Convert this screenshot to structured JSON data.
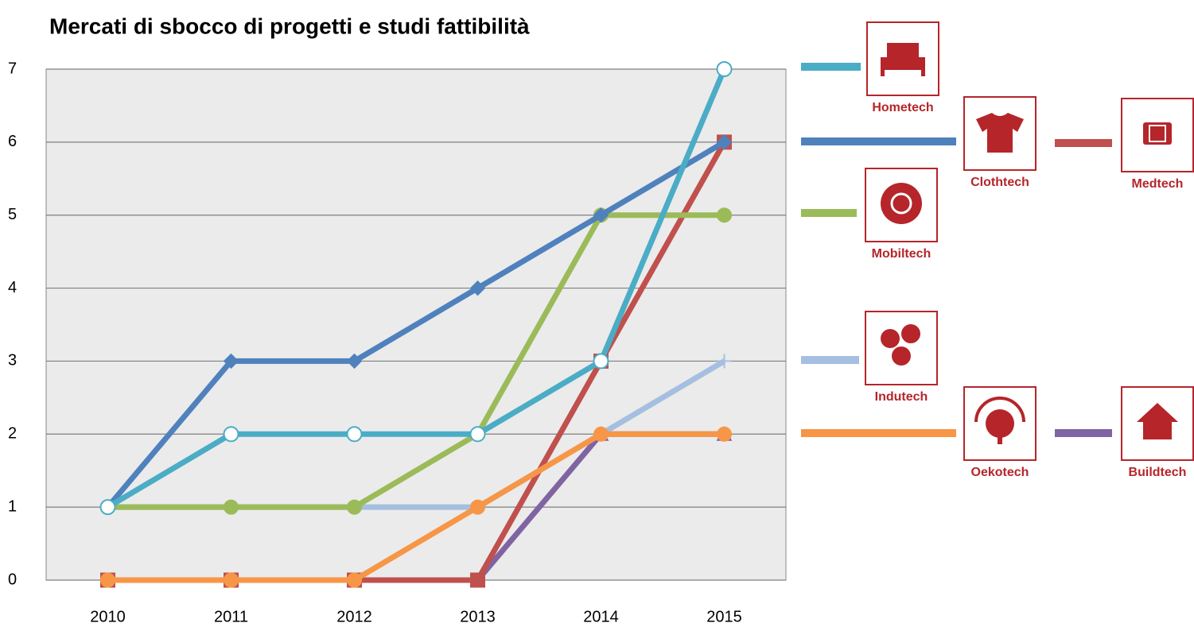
{
  "chart_data": {
    "type": "line",
    "title": "Mercati di sbocco di progetti e studi fattibilità",
    "categories": [
      "2010",
      "2011",
      "2012",
      "2013",
      "2014",
      "2015"
    ],
    "ylim": [
      0,
      7
    ],
    "yticks": [
      0,
      1,
      2,
      3,
      4,
      5,
      6,
      7
    ],
    "grid": true,
    "series": [
      {
        "name": "Buildtech",
        "color": "#8064a2",
        "marker": "triangle",
        "values": [
          0,
          0,
          0,
          0,
          2,
          2
        ]
      },
      {
        "name": "Medtech",
        "color": "#c0504d",
        "marker": "square",
        "values": [
          0,
          0,
          0,
          0,
          3,
          6
        ]
      },
      {
        "name": "Indutech",
        "color": "#a5bfe0",
        "marker": "plus",
        "values": [
          1,
          1,
          1,
          1,
          2,
          3
        ]
      },
      {
        "name": "Mobiltech",
        "color": "#9bbb59",
        "marker": "circle",
        "values": [
          1,
          1,
          1,
          2,
          5,
          5
        ]
      },
      {
        "name": "Oekotech",
        "color": "#f79646",
        "marker": "circle",
        "values": [
          0,
          0,
          0,
          1,
          2,
          2
        ]
      },
      {
        "name": "Clothtech",
        "color": "#4f81bd",
        "marker": "diamond",
        "values": [
          1,
          3,
          3,
          4,
          5,
          6
        ]
      },
      {
        "name": "Hometech",
        "color": "#4bacc6",
        "marker": "circle-open",
        "values": [
          1,
          2,
          2,
          2,
          3,
          7
        ]
      }
    ]
  }
}
